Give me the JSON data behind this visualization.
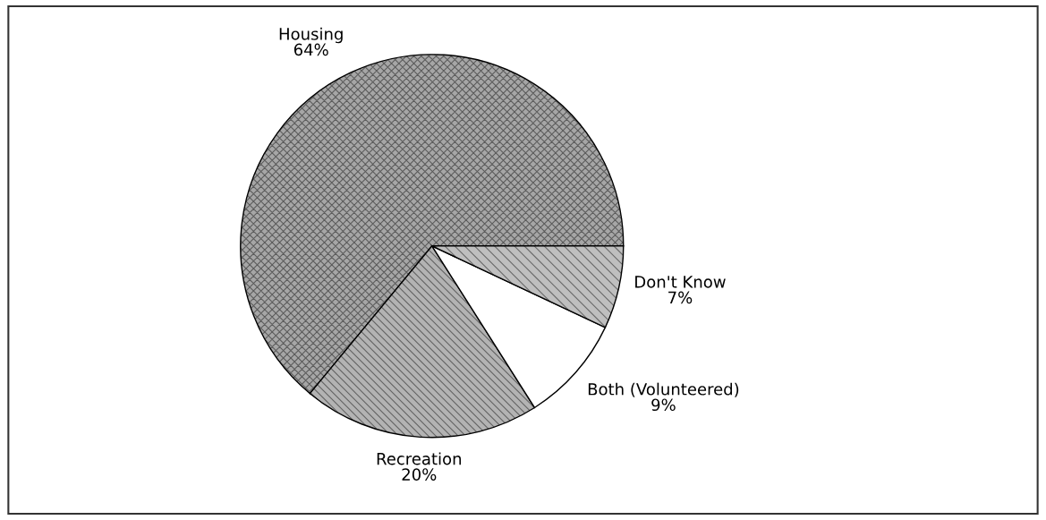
{
  "chart_data": {
    "type": "pie",
    "categories": [
      "Housing",
      "Recreation",
      "Both (Volunteered)",
      "Don't Know"
    ],
    "values": [
      64,
      20,
      9,
      7
    ],
    "value_labels": [
      "64%",
      "20%",
      "9%",
      "7%"
    ],
    "colors": [
      "#a6a6a6",
      "#b3b3b3",
      "#ffffff",
      "#bfbfbf"
    ],
    "legend": false
  }
}
